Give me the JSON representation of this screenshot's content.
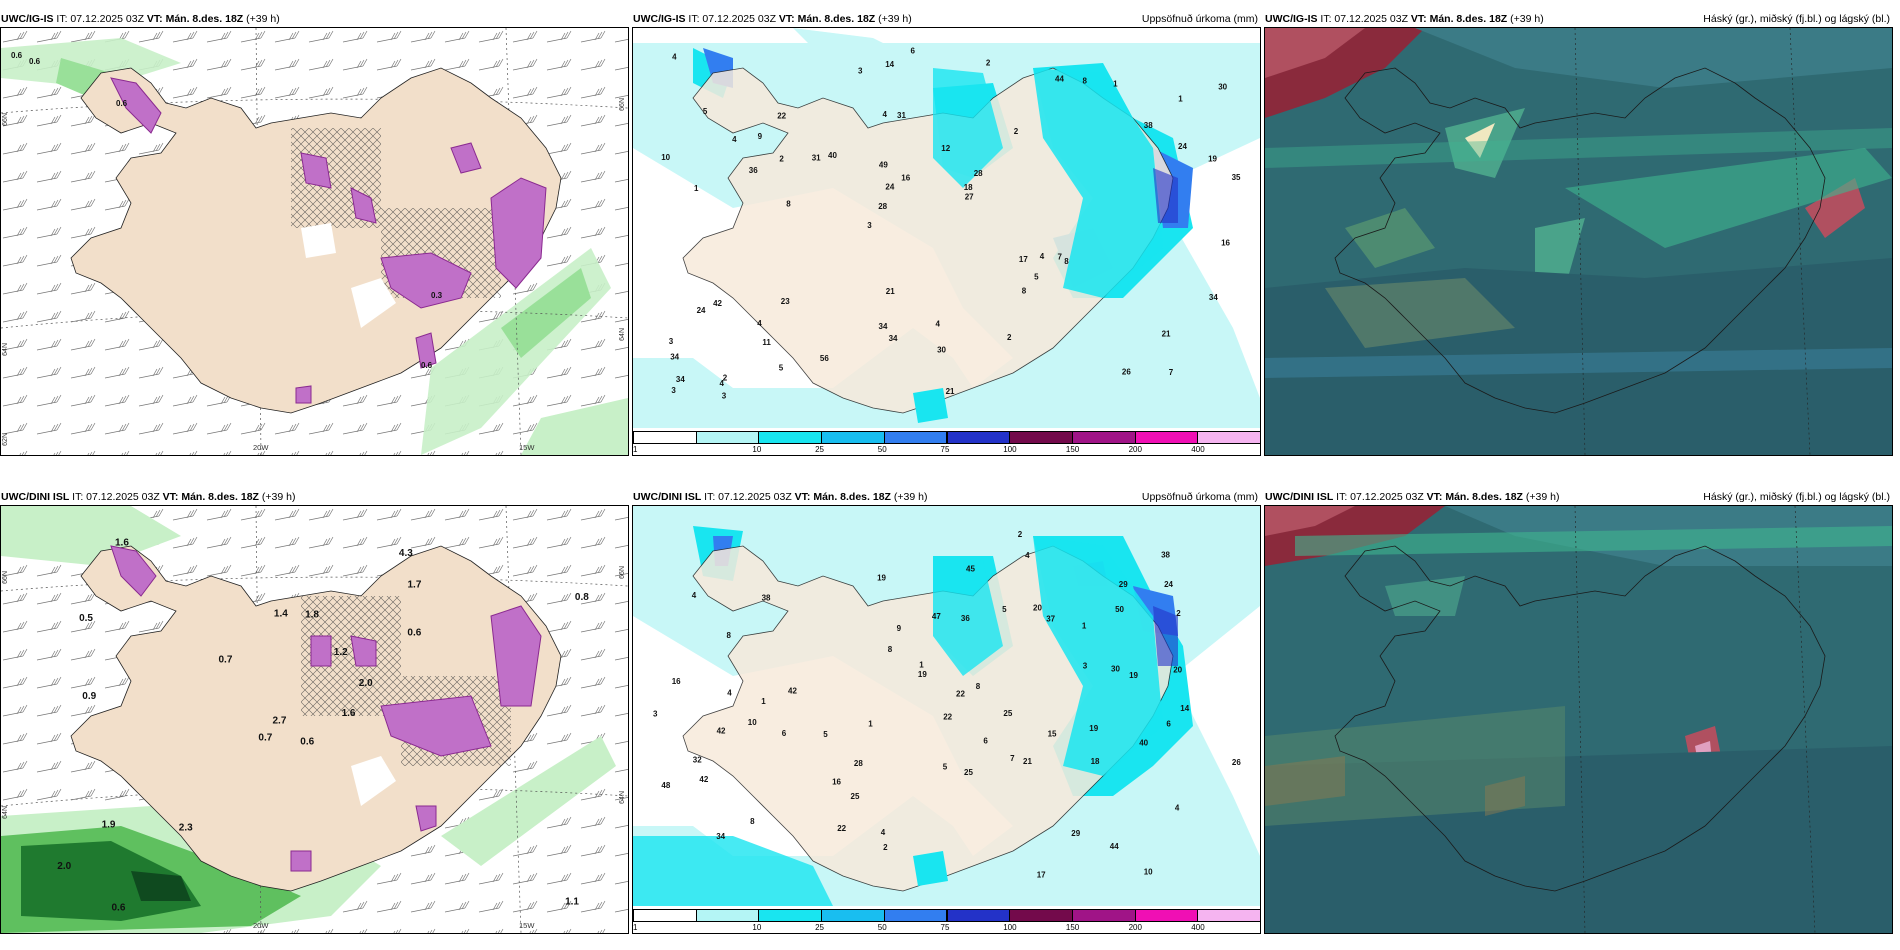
{
  "panels": [
    {
      "id": "p1",
      "title_model": "UWC/IG-IS",
      "title_it": "IT: 07.12.2025 03Z",
      "title_vt": "VT: Mán. 8.des. 18Z",
      "title_lead": "(+39 h)",
      "right_title": ""
    },
    {
      "id": "p2",
      "title_model": "UWC/IG-IS",
      "title_it": "IT: 07.12.2025 03Z",
      "title_vt": "VT: Mán. 8.des. 18Z",
      "title_lead": "(+39 h)",
      "right_title": "Uppsöfnuð úrkoma (mm)"
    },
    {
      "id": "p3",
      "title_model": "UWC/IG-IS",
      "title_it": "IT: 07.12.2025 03Z",
      "title_vt": "VT: Mán. 8.des. 18Z",
      "title_lead": "(+39 h)",
      "right_title": "Háský (gr.), miðský (fj.bl.) og lágský (bl.)"
    },
    {
      "id": "p4",
      "title_model": "UWC/DINI ISL",
      "title_it": "IT: 07.12.2025 03Z",
      "title_vt": "VT: Mán. 8.des. 18Z",
      "title_lead": "(+39 h)",
      "right_title": ""
    },
    {
      "id": "p5",
      "title_model": "UWC/DINI ISL",
      "title_it": "IT: 07.12.2025 03Z",
      "title_vt": "VT: Mán. 8.des. 18Z",
      "title_lead": "(+39 h)",
      "right_title": "Uppsöfnuð úrkoma (mm)"
    },
    {
      "id": "p6",
      "title_model": "UWC/DINI ISL",
      "title_it": "IT: 07.12.2025 03Z",
      "title_vt": "VT: Mán. 8.des. 18Z",
      "title_lead": "(+39 h)",
      "right_title": "Háský (gr.), miðský (fj.bl.) og lágský (bl.)"
    }
  ],
  "colorbar": {
    "labels": [
      "1",
      "10",
      "25",
      "50",
      "75",
      "100",
      "150",
      "200",
      "400"
    ],
    "colors": [
      "#ffffff",
      "#b4f5f5",
      "#19e5f0",
      "#19bef0",
      "#327ef0",
      "#2332c8",
      "#730a4b",
      "#a01487",
      "#f00fb4",
      "#f5b4f0"
    ]
  },
  "axes": {
    "lat_labels": [
      "66N",
      "64N",
      "62N"
    ],
    "lat_labels_right": [
      "66N",
      "64N"
    ],
    "lon_labels": [
      "20W",
      "15W"
    ]
  },
  "p1_values": [
    "0.6",
    "0.6",
    "0.6",
    "0.3",
    "0.6"
  ],
  "p4_values": [
    "0.6",
    "0.5",
    "2.7",
    "2.0",
    "2.0",
    "2.3",
    "4.3",
    "1.8",
    "1.7",
    "1.6",
    "1.6",
    "1.1",
    "0.9",
    "0.8",
    "0.7",
    "0.6",
    "0.6",
    "1.4",
    "1.2",
    "1.9",
    "0.7"
  ],
  "p2_values": [
    "7",
    "1",
    "1",
    "3",
    "2",
    "2",
    "4",
    "12",
    "42",
    "40",
    "34",
    "11",
    "31",
    "28",
    "8",
    "5",
    "14",
    "35",
    "17",
    "24",
    "28",
    "34",
    "24",
    "22",
    "44",
    "23",
    "26",
    "21",
    "7",
    "21",
    "31",
    "36",
    "8",
    "5",
    "19",
    "18",
    "34",
    "34",
    "27",
    "24",
    "38",
    "30",
    "5",
    "2",
    "4",
    "3",
    "3",
    "4",
    "1",
    "6",
    "8",
    "10",
    "9",
    "8",
    "4",
    "2",
    "3",
    "16",
    "34",
    "21",
    "56",
    "4",
    "2",
    "3",
    "4",
    "4",
    "16",
    "49",
    "30"
  ],
  "p5_values": [
    "10",
    "10",
    "7",
    "4",
    "4",
    "8",
    "8",
    "5",
    "1",
    "47",
    "37",
    "44",
    "25",
    "19",
    "25",
    "42",
    "19",
    "22",
    "16",
    "34",
    "38",
    "36",
    "30",
    "26",
    "14",
    "4",
    "6",
    "22",
    "19",
    "24",
    "21",
    "42",
    "16",
    "20",
    "9",
    "40",
    "6",
    "29",
    "29",
    "17",
    "28",
    "25",
    "22",
    "2",
    "1",
    "1",
    "2",
    "4",
    "5",
    "5",
    "15",
    "20",
    "18",
    "19",
    "8",
    "3",
    "2",
    "1",
    "6",
    "3",
    "4",
    "50",
    "38",
    "45",
    "48",
    "32",
    "42",
    "8"
  ]
}
